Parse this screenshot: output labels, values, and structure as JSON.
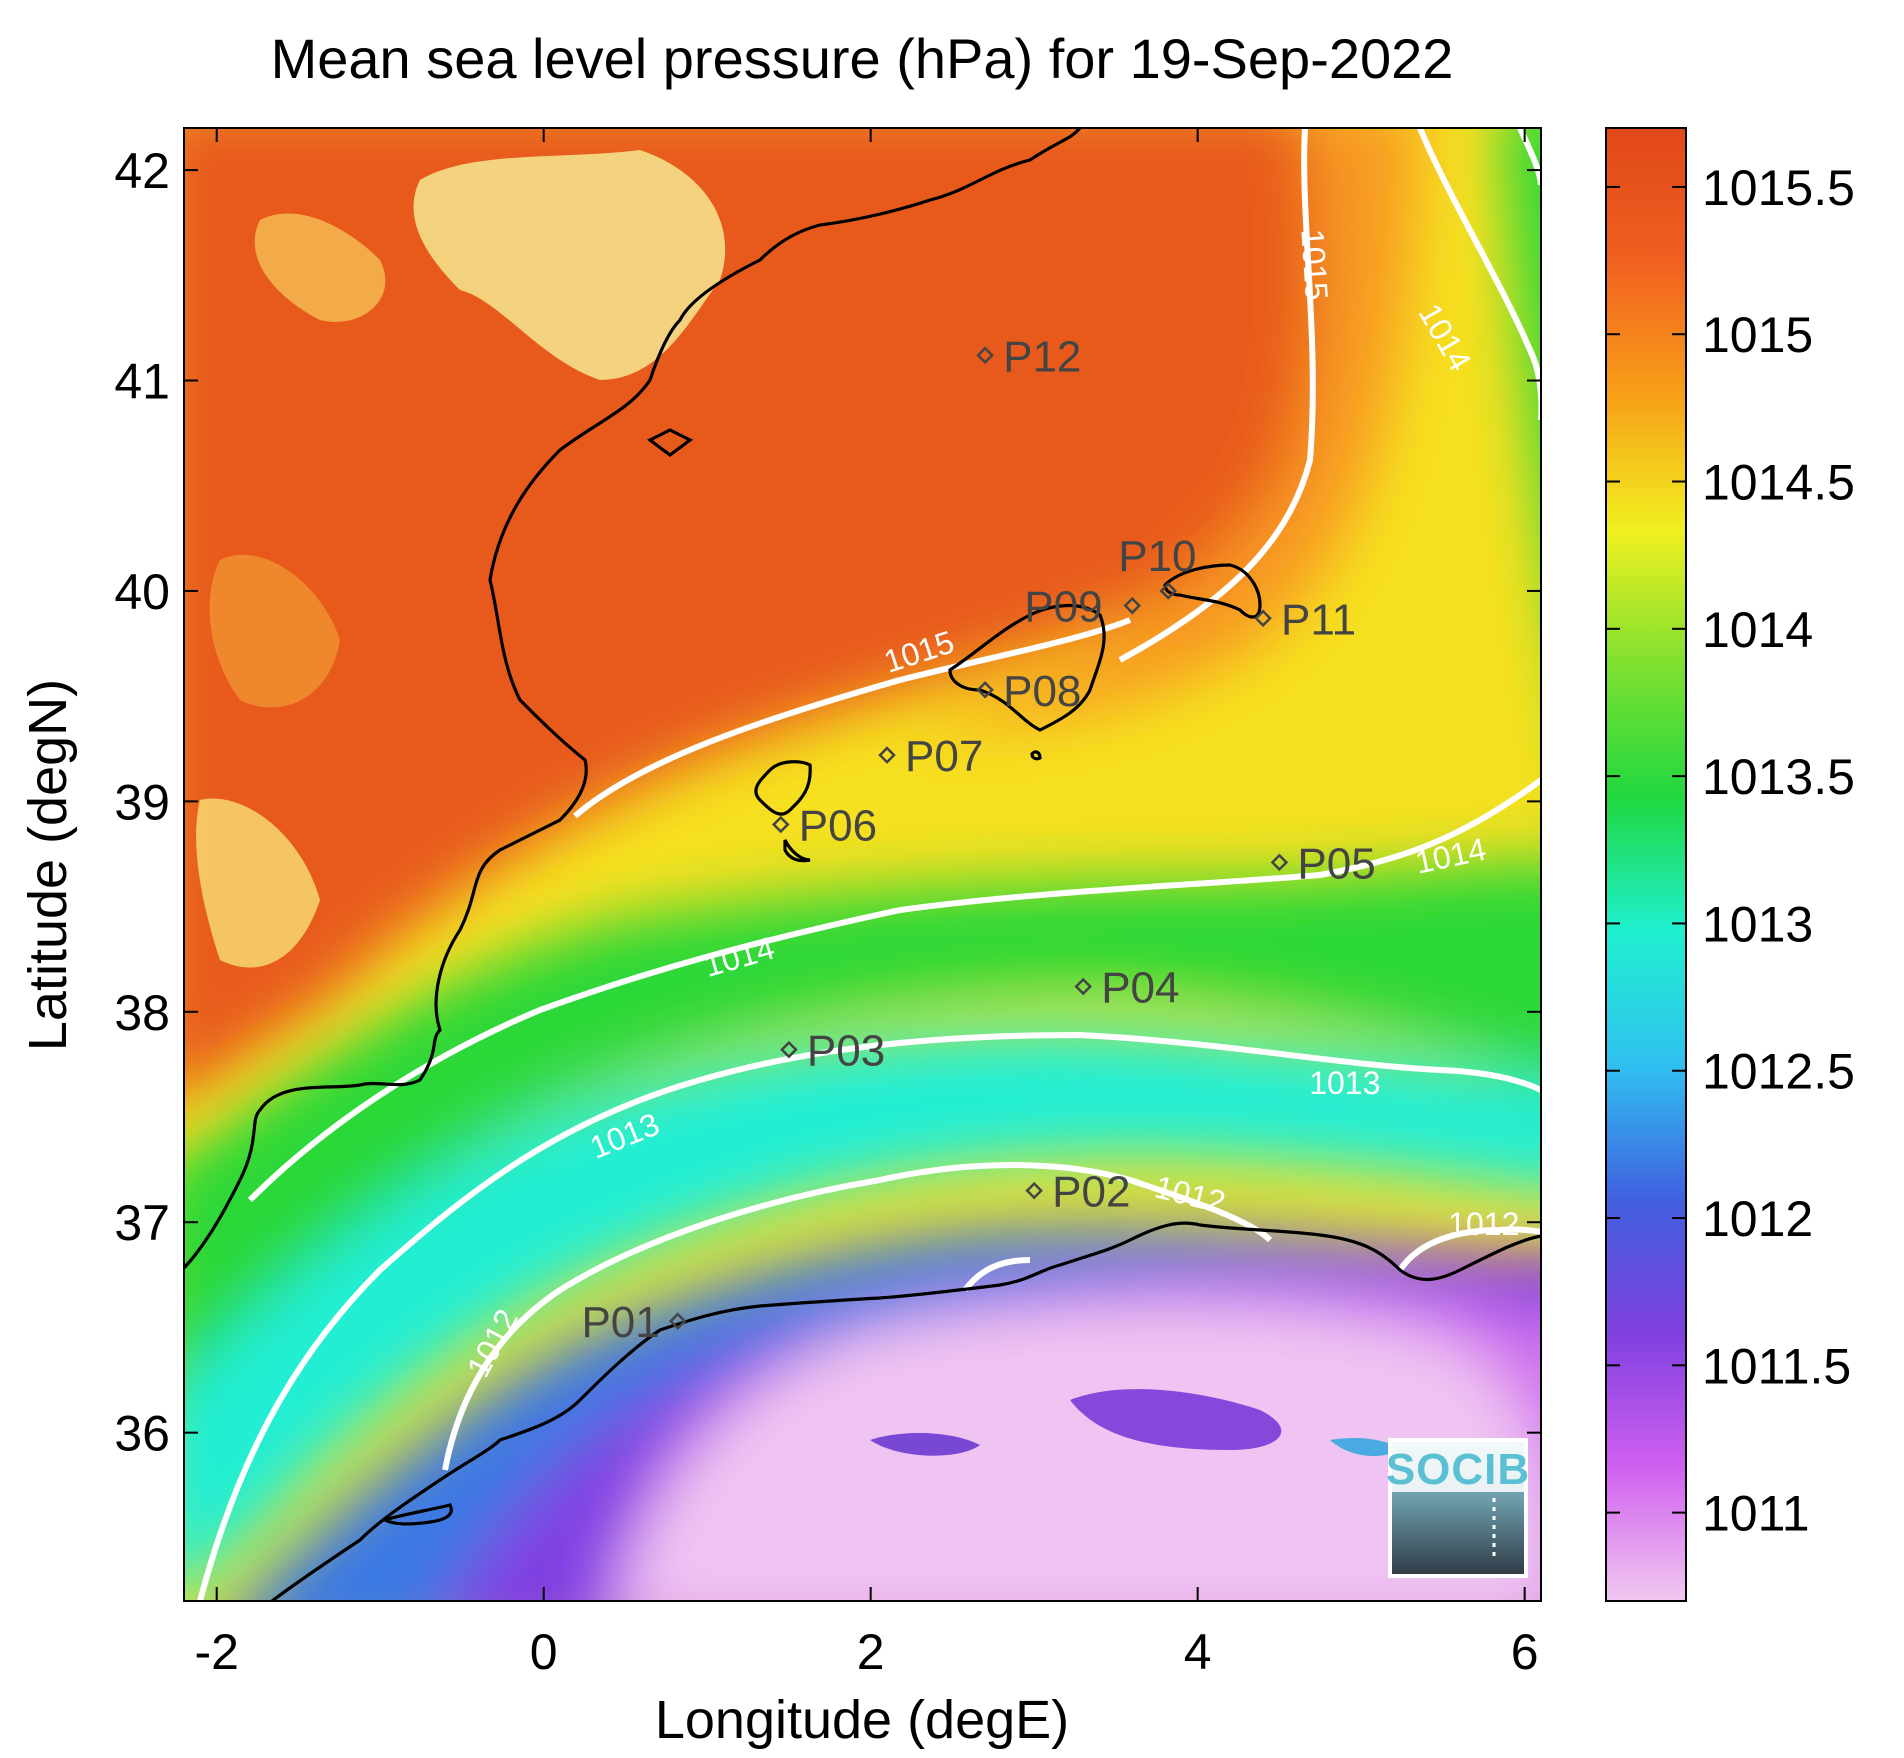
{
  "title": "Mean sea level pressure (hPa) for 19-Sep-2022",
  "x_axis": {
    "label": "Longitude (degE)",
    "range": [
      -2.2,
      6.1
    ],
    "ticks": [
      -2,
      0,
      2,
      4,
      6
    ],
    "tick_labels": [
      "-2",
      "0",
      "2",
      "4",
      "6"
    ]
  },
  "y_axis": {
    "label": "Latitude (degN)",
    "range": [
      35.2,
      42.2
    ],
    "ticks": [
      36,
      37,
      38,
      39,
      40,
      41,
      42
    ],
    "tick_labels": [
      "36",
      "37",
      "38",
      "39",
      "40",
      "41",
      "42"
    ]
  },
  "colorbar": {
    "range": [
      1010.7,
      1015.7
    ],
    "ticks": [
      1011,
      1011.5,
      1012,
      1012.5,
      1013,
      1013.5,
      1014,
      1014.5,
      1015,
      1015.5
    ],
    "tick_labels": [
      "1011",
      "1011.5",
      "1012",
      "1012.5",
      "1013",
      "1013.5",
      "1014",
      "1014.5",
      "1015",
      "1015.5"
    ],
    "colors": [
      "#f0c8f0",
      "#d060f0",
      "#8040e0",
      "#4060e0",
      "#30c0f0",
      "#20f0d0",
      "#20d840",
      "#80e030",
      "#f0f020",
      "#f8a018",
      "#f06020",
      "#e04818"
    ]
  },
  "stations": [
    {
      "id": "P01",
      "lon": 0.82,
      "lat": 36.53
    },
    {
      "id": "P02",
      "lon": 3.0,
      "lat": 37.15
    },
    {
      "id": "P03",
      "lon": 1.5,
      "lat": 37.82
    },
    {
      "id": "P04",
      "lon": 3.3,
      "lat": 38.12
    },
    {
      "id": "P05",
      "lon": 4.5,
      "lat": 38.71
    },
    {
      "id": "P06",
      "lon": 1.45,
      "lat": 38.89
    },
    {
      "id": "P07",
      "lon": 2.1,
      "lat": 39.22
    },
    {
      "id": "P08",
      "lon": 2.7,
      "lat": 39.53
    },
    {
      "id": "P09",
      "lon": 3.6,
      "lat": 39.93
    },
    {
      "id": "P10",
      "lon": 3.82,
      "lat": 40.0
    },
    {
      "id": "P11",
      "lon": 4.4,
      "lat": 39.87
    },
    {
      "id": "P12",
      "lon": 2.7,
      "lat": 41.12
    }
  ],
  "contour_labels": [
    {
      "text": "1015",
      "lon": 2.3,
      "lat": 39.7,
      "rot": -18
    },
    {
      "text": "1015",
      "lon": 4.7,
      "lat": 41.55,
      "rot": 86
    },
    {
      "text": "1014",
      "lon": 5.5,
      "lat": 41.2,
      "rot": 60
    },
    {
      "text": "1014",
      "lon": 1.2,
      "lat": 38.25,
      "rot": -16
    },
    {
      "text": "1014",
      "lon": 5.55,
      "lat": 38.73,
      "rot": -12
    },
    {
      "text": "1013",
      "lon": 0.5,
      "lat": 37.4,
      "rot": -22
    },
    {
      "text": "1013",
      "lon": 4.9,
      "lat": 37.65,
      "rot": 0
    },
    {
      "text": "1012",
      "lon": 3.95,
      "lat": 37.12,
      "rot": 14
    },
    {
      "text": "1012",
      "lon": 5.75,
      "lat": 36.98,
      "rot": 0
    },
    {
      "text": "1012",
      "lon": -0.3,
      "lat": 36.42,
      "rot": -62
    }
  ],
  "logo": {
    "text": "SOCIB"
  }
}
